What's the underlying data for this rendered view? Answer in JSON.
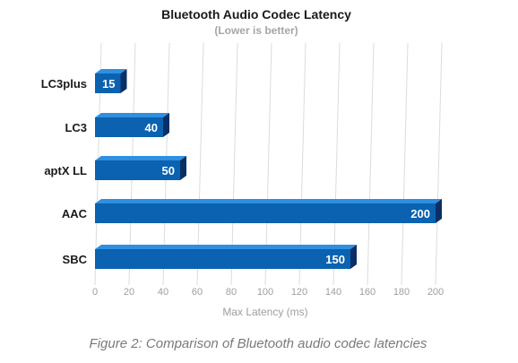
{
  "figure": {
    "caption": "Figure 2: Comparison of Bluetooth audio codec latencies"
  },
  "colors": {
    "bar_front": "#0a62b0",
    "bar_top": "#2f8fe0",
    "bar_side": "#0a2f66",
    "grid": "#dcdcdc"
  },
  "chart_data": {
    "type": "bar",
    "orientation": "horizontal",
    "style": "3d",
    "title": "Bluetooth Audio Codec Latency",
    "subtitle": "(Lower is better)",
    "xlabel": "Max Latency (ms)",
    "ylabel": "",
    "categories": [
      "LC3plus",
      "LC3",
      "aptX LL",
      "AAC",
      "SBC"
    ],
    "values": [
      15,
      40,
      50,
      200,
      150
    ],
    "data_labels": [
      "15",
      "40",
      "50",
      "200",
      "150"
    ],
    "xlim": [
      0,
      200
    ],
    "xticks": [
      0,
      20,
      40,
      60,
      80,
      100,
      120,
      140,
      160,
      180,
      200
    ],
    "xtick_labels": [
      "0",
      "20",
      "40",
      "60",
      "80",
      "100",
      "120",
      "140",
      "160",
      "180",
      "200"
    ],
    "grid": "vertical",
    "legend": "none"
  }
}
